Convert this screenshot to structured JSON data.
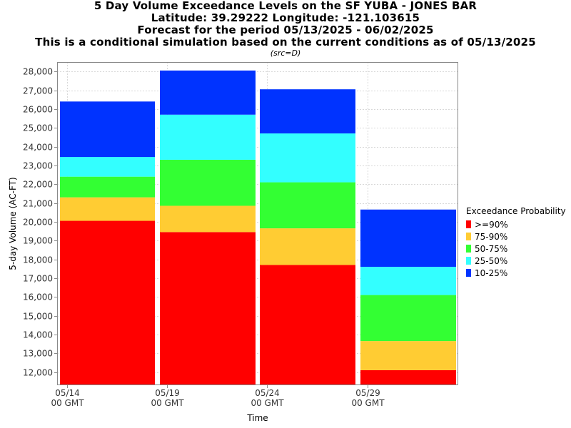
{
  "titles": {
    "line1": "5 Day Volume Exceedance Levels on the SF YUBA - JONES BAR",
    "line2": "Latitude: 39.29222 Longitude: -121.103615",
    "line3": "Forecast for the period 05/13/2025 - 06/02/2025",
    "line4": "This is a conditional simulation based on the current conditions as of 05/13/2025",
    "src": "(src=D)"
  },
  "chart_data": {
    "type": "bar",
    "stacked": true,
    "x_ticks": [
      {
        "line1": "05/14",
        "line2": "00 GMT"
      },
      {
        "line1": "05/19",
        "line2": "00 GMT"
      },
      {
        "line1": "05/24",
        "line2": "00 GMT"
      },
      {
        "line1": "05/29",
        "line2": "00 GMT"
      }
    ],
    "xlabel": "Time",
    "ylabel": "5-day Volume (AC-FT)",
    "ylim": [
      11300,
      28500
    ],
    "y_ticks": [
      12000,
      13000,
      14000,
      15000,
      16000,
      17000,
      18000,
      19000,
      20000,
      21000,
      22000,
      23000,
      24000,
      25000,
      26000,
      27000,
      28000
    ],
    "y_tick_labels": [
      "12,000",
      "13,000",
      "14,000",
      "15,000",
      "16,000",
      "17,000",
      "18,000",
      "19,000",
      "20,000",
      "21,000",
      "22,000",
      "23,000",
      "24,000",
      "25,000",
      "26,000",
      "27,000",
      "28,000"
    ],
    "grid": true,
    "legend_title": "Exceedance Probability",
    "legend_position": "right",
    "series": [
      {
        "name": ">=90%",
        "color": "#ff0000"
      },
      {
        "name": "75-90%",
        "color": "#ffcc33"
      },
      {
        "name": "50-75%",
        "color": "#33ff33"
      },
      {
        "name": "25-50%",
        "color": "#33ffff"
      },
      {
        "name": "10-25%",
        "color": "#0033ff"
      }
    ],
    "bars": [
      {
        "period": "05/14 - 05/19",
        "levels": [
          20050,
          21300,
          22400,
          23450,
          26400
        ]
      },
      {
        "period": "05/19 - 05/24",
        "levels": [
          19450,
          20850,
          23300,
          25700,
          28050
        ]
      },
      {
        "period": "05/24 - 05/29",
        "levels": [
          17700,
          19650,
          22100,
          24700,
          27050
        ]
      },
      {
        "period": "05/29 - 06/02",
        "levels": [
          12100,
          13650,
          16100,
          17600,
          20650
        ]
      }
    ]
  }
}
